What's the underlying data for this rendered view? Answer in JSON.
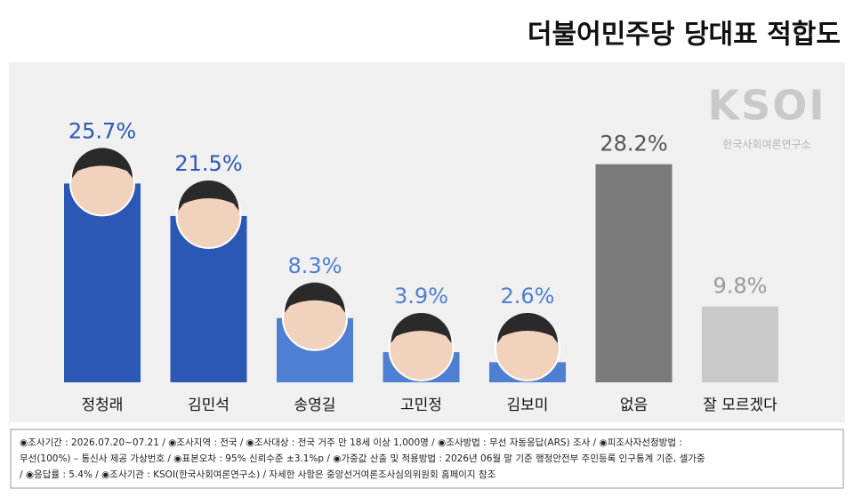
{
  "chart_data": {
    "type": "bar",
    "title": "더불어민주당 당대표 적합도",
    "logo": "KSOI",
    "logo_subtitle": "한국사회여론연구소",
    "categories": [
      "정청래",
      "김민석",
      "송영길",
      "고민정",
      "김보미",
      "없음",
      "잘 모르겠다"
    ],
    "values": [
      25.7,
      21.5,
      8.3,
      3.9,
      2.6,
      28.2,
      9.8
    ],
    "value_labels": [
      "25.7%",
      "21.5%",
      "8.3%",
      "3.9%",
      "2.6%",
      "28.2%",
      "9.8%"
    ],
    "colors": [
      "#2c58b5",
      "#2c58b5",
      "#4f7fd3",
      "#4f7fd3",
      "#4f7fd3",
      "#7a7a7a",
      "#c9c9c9"
    ],
    "label_colors": [
      "#2c58b5",
      "#2c58b5",
      "#4f7fd3",
      "#4f7fd3",
      "#4f7fd3",
      "#555555",
      "#9a9a9a"
    ],
    "notes": [
      "◉조사기간 : 2026.07.20~07.21 / ◉조사지역 : 전국 / ◉조사대상 : 전국 거주 만 18세 이상 1,000명 / ◉조사방법 : 무선 자동응답(ARS) 조사 / ◉피조사자선정방법 :",
      "무선(100%) – 통신사 제공 가상번호 / ◉표본오차 : 95% 신뢰수준 ±3.1%p / ◉가중값 산출 및 적용방법 : 2026년 06월 말 기준 행정안전부 주민등록 인구통계 기준, 셀가중",
      "/ ◉응답률 : 5.4% / ◉조사기관 : KSOI(한국사회여론연구소) / 자세한 사항은 중앙선거여론조사심의위원회 홈페이지 참조"
    ]
  }
}
